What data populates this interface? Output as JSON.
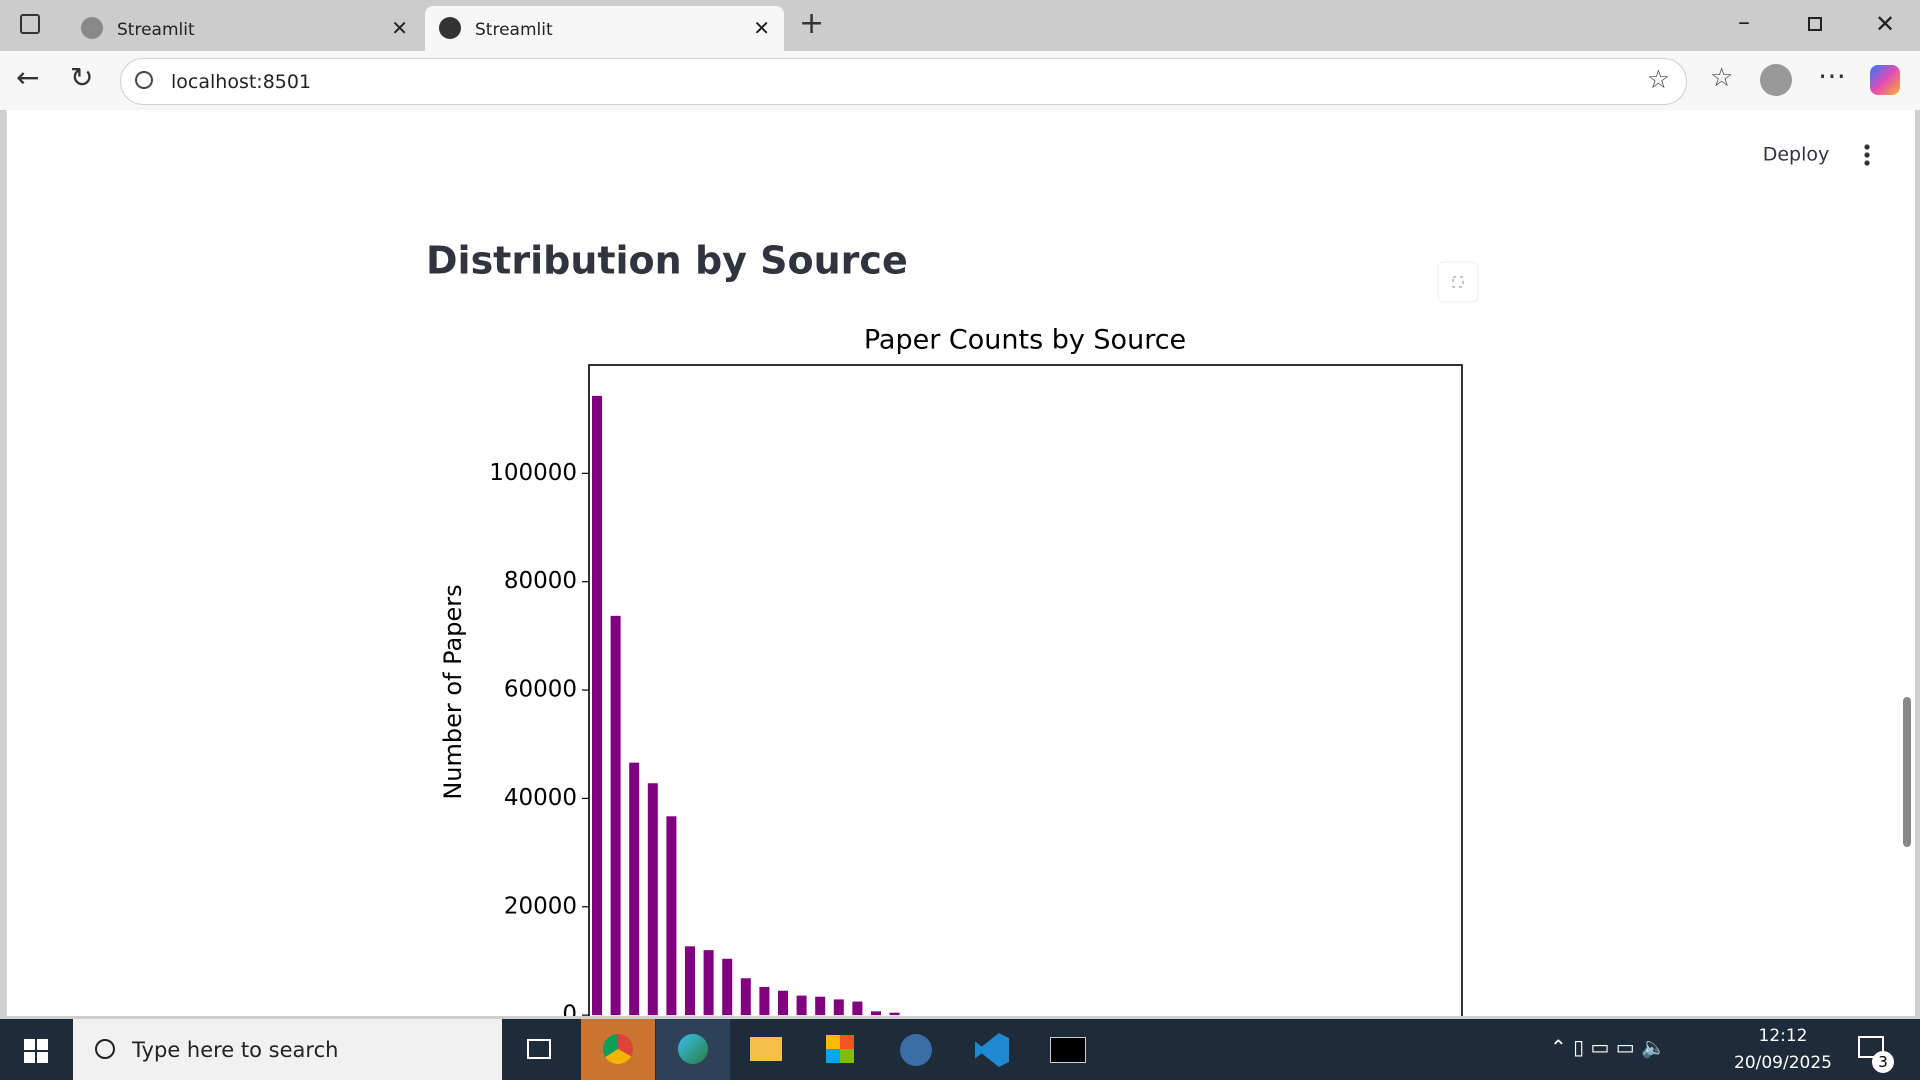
{
  "browser": {
    "tabs": [
      "Streamlit",
      "Streamlit"
    ],
    "url": "localhost:8501"
  },
  "app": {
    "deploy": "Deploy",
    "heading": "Distribution by Source"
  },
  "chart_data": {
    "type": "bar",
    "title": "Paper Counts by Source",
    "ylabel": "Number of Papers",
    "categories": [
      null,
      null,
      null,
      null,
      null,
      null,
      null,
      null,
      null,
      null,
      null,
      null,
      null,
      null,
      null,
      null,
      null
    ],
    "values": [
      114300,
      73700,
      46600,
      42800,
      36700,
      12700,
      12000,
      10400,
      6800,
      5200,
      4500,
      3600,
      3400,
      2900,
      2500,
      700,
      450
    ],
    "color": "#800080",
    "ylim": [
      -5700,
      120000
    ],
    "yticks": [
      0,
      20000,
      40000,
      60000,
      80000,
      100000
    ]
  },
  "taskbar": {
    "search": "Type here to search",
    "time": "12:12",
    "date": "20/09/2025",
    "notifications": 3
  }
}
